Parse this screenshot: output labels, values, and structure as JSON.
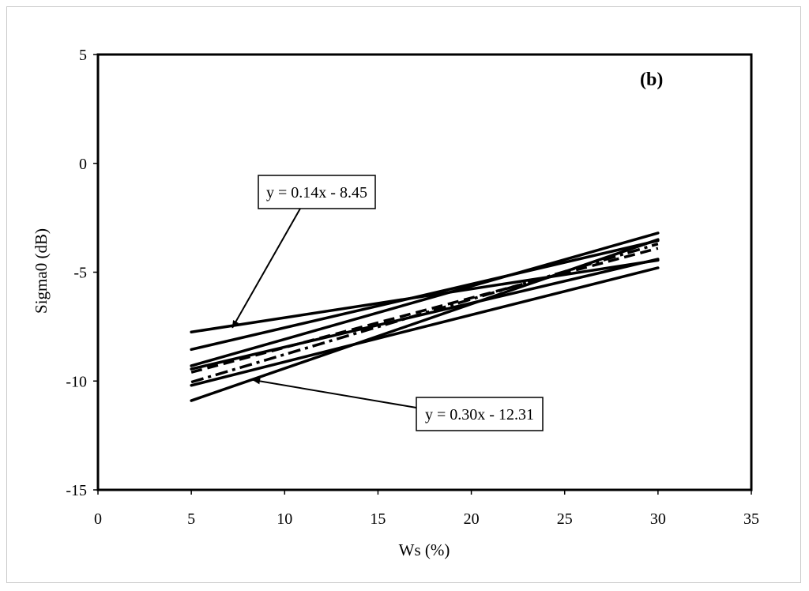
{
  "chart_data": {
    "type": "line",
    "panel_label": "(b)",
    "xlabel": "Ws (%)",
    "ylabel": "Sigma0 (dB)",
    "xlim": [
      0,
      35
    ],
    "ylim": [
      -15,
      5
    ],
    "x_ticks": [
      "0",
      "5",
      "10",
      "15",
      "20",
      "25",
      "30",
      "35"
    ],
    "y_ticks": [
      "5",
      "0",
      "-5",
      "-10",
      "-15"
    ],
    "grid": false,
    "x": [
      5,
      30
    ],
    "series": [
      {
        "values": [
          -7.75,
          -4.45
        ],
        "dash": "solid"
      },
      {
        "values": [
          -8.55,
          -3.55
        ],
        "dash": "solid"
      },
      {
        "values": [
          -9.3,
          -3.2
        ],
        "dash": "solid"
      },
      {
        "values": [
          -9.45,
          -4.4
        ],
        "dash": "solid"
      },
      {
        "values": [
          -10.2,
          -4.8
        ],
        "dash": "solid"
      },
      {
        "values": [
          -10.9,
          -3.5
        ],
        "dash": "solid"
      },
      {
        "values": [
          -10.05,
          -3.7
        ],
        "dash": "dashdot"
      },
      {
        "values": [
          -9.6,
          -3.9
        ],
        "dash": "dashed"
      }
    ],
    "annotations": [
      {
        "text": "y = 0.14x - 8.45",
        "target": [
          7.2,
          -7.55
        ]
      },
      {
        "text": "y = 0.30x - 12.31",
        "target": [
          8.3,
          -9.95
        ]
      }
    ]
  }
}
